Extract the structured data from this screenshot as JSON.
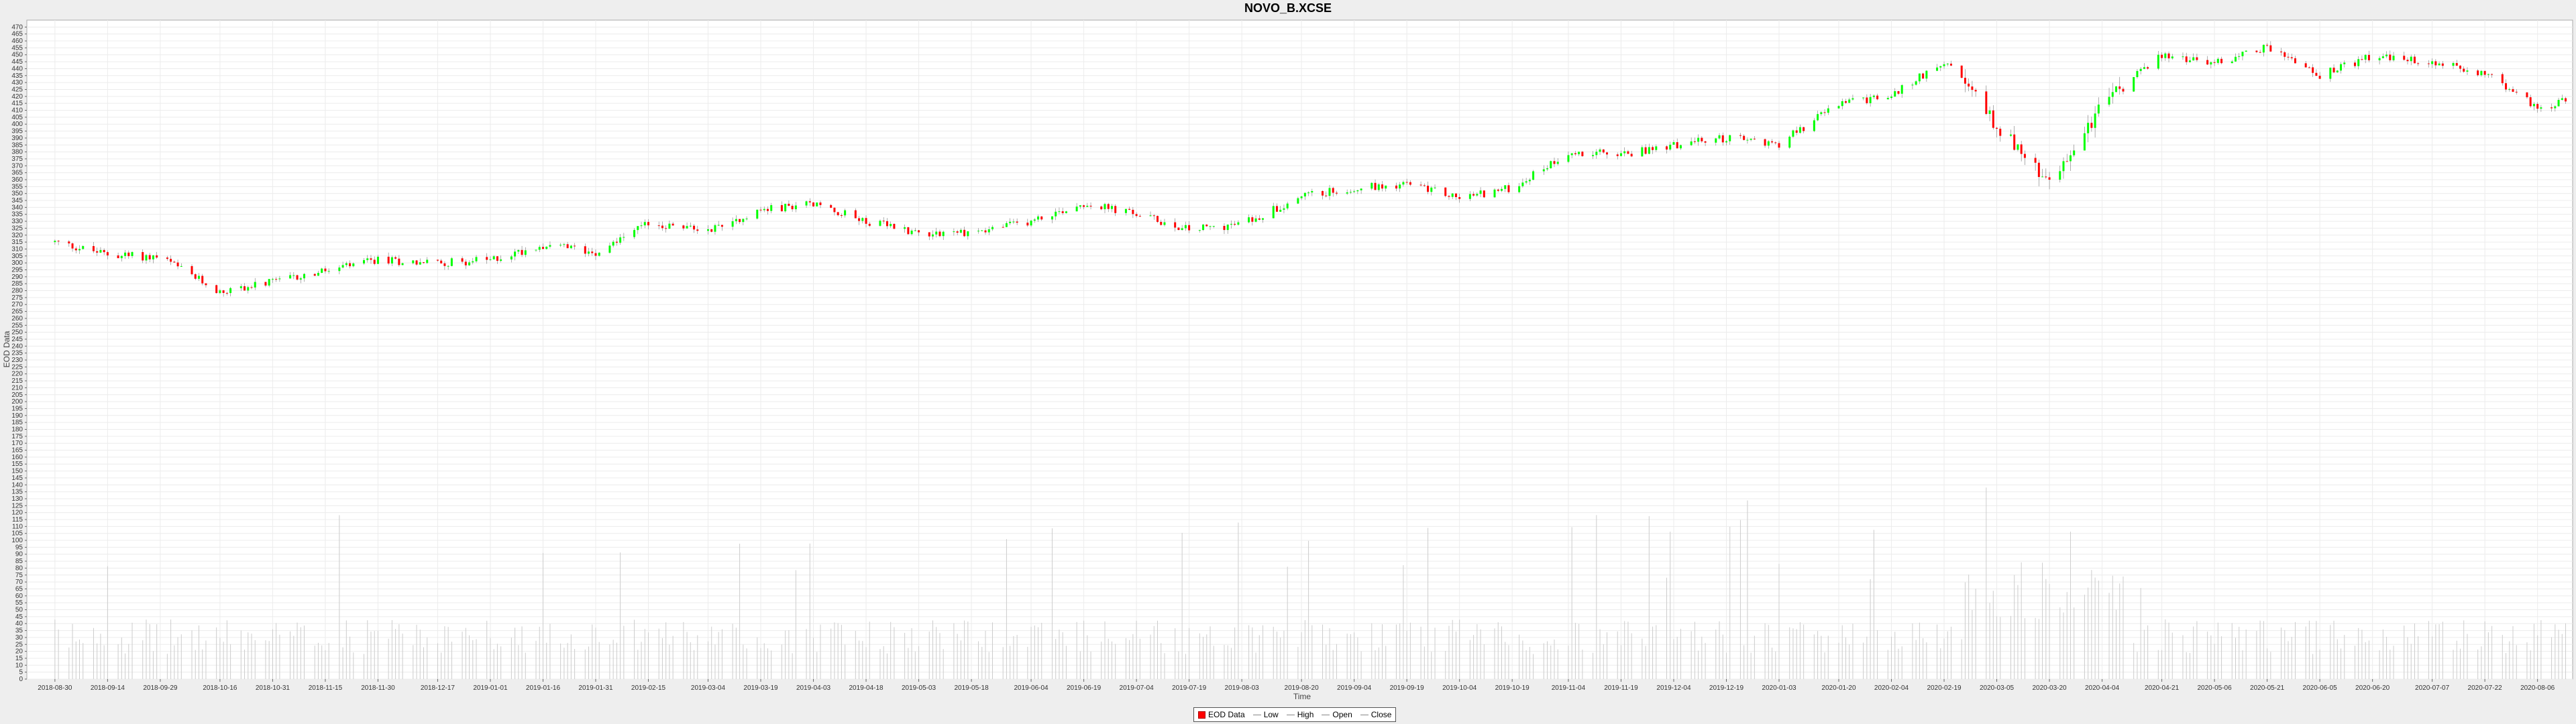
{
  "chart_data": {
    "type": "candlestick",
    "title": "NOVO_B.XCSE",
    "xlabel": "Time",
    "ylabel": "EOD Data",
    "ylim": [
      0,
      475
    ],
    "y_ticks": [
      0,
      5,
      10,
      15,
      20,
      25,
      30,
      35,
      40,
      45,
      50,
      55,
      60,
      65,
      70,
      75,
      80,
      85,
      90,
      95,
      100,
      105,
      110,
      115,
      120,
      125,
      130,
      135,
      140,
      145,
      150,
      155,
      160,
      165,
      170,
      175,
      180,
      185,
      190,
      195,
      200,
      205,
      210,
      215,
      220,
      225,
      230,
      235,
      240,
      245,
      250,
      255,
      260,
      265,
      270,
      275,
      280,
      285,
      290,
      295,
      300,
      305,
      310,
      315,
      320,
      325,
      330,
      335,
      340,
      345,
      350,
      355,
      360,
      365,
      370,
      375,
      380,
      385,
      390,
      395,
      400,
      405,
      410,
      415,
      420,
      425,
      430,
      435,
      440,
      445,
      450,
      455,
      460,
      465,
      470
    ],
    "x_ticks": [
      "2018-08-30",
      "2018-09-14",
      "2018-09-29",
      "2018-10-16",
      "2018-10-31",
      "2018-11-15",
      "2018-11-30",
      "2018-12-17",
      "2019-01-01",
      "2019-01-16",
      "2019-01-31",
      "2019-02-15",
      "2019-03-04",
      "2019-03-19",
      "2019-04-03",
      "2019-04-18",
      "2019-05-03",
      "2019-05-18",
      "2019-06-04",
      "2019-06-19",
      "2019-07-04",
      "2019-07-19",
      "2019-08-03",
      "2019-08-20",
      "2019-09-04",
      "2019-09-19",
      "2019-10-04",
      "2019-10-19",
      "2019-11-04",
      "2019-11-19",
      "2019-12-04",
      "2019-12-19",
      "2020-01-03",
      "2020-01-20",
      "2020-02-04",
      "2020-02-19",
      "2020-03-05",
      "2020-03-20",
      "2020-04-04",
      "2020-04-21",
      "2020-05-06",
      "2020-05-21",
      "2020-06-05",
      "2020-06-20",
      "2020-07-07",
      "2020-07-22",
      "2020-08-06"
    ],
    "close_path": [
      [
        "2018-08-30",
        315
      ],
      [
        "2018-09-14",
        306
      ],
      [
        "2018-09-29",
        304
      ],
      [
        "2018-10-16",
        279
      ],
      [
        "2018-10-31",
        286
      ],
      [
        "2018-11-15",
        294
      ],
      [
        "2018-11-30",
        302
      ],
      [
        "2018-12-17",
        300
      ],
      [
        "2019-01-01",
        302
      ],
      [
        "2019-01-16",
        313
      ],
      [
        "2019-01-31",
        308
      ],
      [
        "2019-02-15",
        328
      ],
      [
        "2019-03-04",
        324
      ],
      [
        "2019-03-19",
        338
      ],
      [
        "2019-04-03",
        343
      ],
      [
        "2019-04-18",
        330
      ],
      [
        "2019-05-03",
        322
      ],
      [
        "2019-05-18",
        322
      ],
      [
        "2019-06-04",
        330
      ],
      [
        "2019-06-19",
        343
      ],
      [
        "2019-07-04",
        335
      ],
      [
        "2019-07-19",
        324
      ],
      [
        "2019-08-03",
        328
      ],
      [
        "2019-08-20",
        348
      ],
      [
        "2019-09-04",
        354
      ],
      [
        "2019-09-19",
        357
      ],
      [
        "2019-10-04",
        347
      ],
      [
        "2019-10-19",
        354
      ],
      [
        "2019-11-04",
        380
      ],
      [
        "2019-11-19",
        378
      ],
      [
        "2019-12-04",
        385
      ],
      [
        "2019-12-19",
        390
      ],
      [
        "2020-01-03",
        386
      ],
      [
        "2020-01-20",
        415
      ],
      [
        "2020-02-04",
        420
      ],
      [
        "2020-02-19",
        446
      ],
      [
        "2020-03-05",
        400
      ],
      [
        "2020-03-20",
        355
      ],
      [
        "2020-04-04",
        415
      ],
      [
        "2020-04-21",
        450
      ],
      [
        "2020-05-06",
        444
      ],
      [
        "2020-05-21",
        456
      ],
      [
        "2020-06-05",
        435
      ],
      [
        "2020-06-20",
        449
      ],
      [
        "2020-07-07",
        444
      ],
      [
        "2020-07-22",
        437
      ],
      [
        "2020-08-06",
        412
      ],
      [
        "2020-08-15",
        417
      ]
    ],
    "legend": {
      "position": "bottom-center",
      "items": [
        {
          "name": "EOD Data",
          "color": "#ff0000"
        },
        {
          "name": "Low",
          "color": "#999999"
        },
        {
          "name": "High",
          "color": "#999999"
        },
        {
          "name": "Open",
          "color": "#999999"
        },
        {
          "name": "Close",
          "color": "#999999"
        }
      ]
    },
    "up_color": "#00ff00",
    "down_color": "#ff0000",
    "volume_color": "#cccccc",
    "grid": true
  }
}
